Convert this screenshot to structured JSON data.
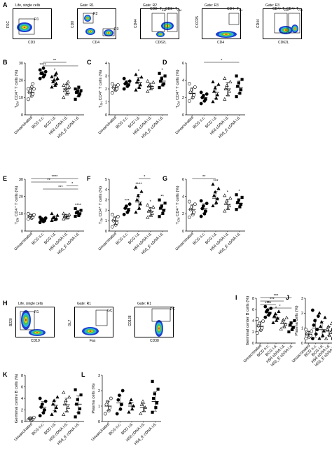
{
  "row1": {
    "panel_label": "A",
    "plots": [
      {
        "gate": "Life, single cells",
        "xlabel": "CD3",
        "ylabel": "FSC",
        "regions": [
          "R1"
        ]
      },
      {
        "gate": "Gate: R1",
        "xlabel": "CD4",
        "ylabel": "CD8",
        "regions": [
          "R2",
          "R3"
        ]
      },
      {
        "gate": "Gate: R2",
        "xlabel": "CD62L",
        "ylabel": "CD44",
        "regions": [
          "CD8⁺ T",
          "CD8⁺ T"
        ],
        "region_subs": [
          "EM",
          "CM"
        ]
      },
      {
        "gate": "Gate: R3",
        "xlabel": "CD4",
        "ylabel": "CXCR5",
        "regions": [
          "CD4⁺ T"
        ],
        "region_subs": [
          "FH"
        ]
      },
      {
        "gate": "Gate: R3",
        "xlabel": "CD62L",
        "ylabel": "CD44",
        "regions": [
          "CD4⁺ T",
          "CD4⁺ T"
        ],
        "region_subs": [
          "EM",
          "CM"
        ]
      }
    ]
  },
  "row4": {
    "panel_label": "H",
    "plots": [
      {
        "gate": "Life, single cells",
        "xlabel": "CD19",
        "ylabel": "B220",
        "regions": [
          "R1"
        ]
      },
      {
        "gate": "Gate: R1",
        "xlabel": "Fas",
        "ylabel": "GL7",
        "regions": [
          "GC"
        ]
      },
      {
        "gate": "Gate: R1",
        "xlabel": "CD38",
        "ylabel": "CD138",
        "regions": [
          "PC"
        ]
      }
    ]
  },
  "chart_data": [
    {
      "id": "B",
      "type": "scatter",
      "ylabel": "T",
      "ylabel_sub": "EM",
      "ylabel_rest": " CD4⁺ T cells (%)",
      "yticks": [
        0,
        10,
        20,
        30
      ],
      "ylim": [
        0,
        30
      ],
      "categories": [
        "Unvaccinated",
        "BCG s.c.",
        "BCG i.d.",
        "H56 cDNA i.d.",
        "H56_E cDNA i.d."
      ],
      "markers": [
        "circle-open",
        "circle-filled",
        "triangle-filled",
        "triangle-open",
        "square-filled"
      ],
      "means": [
        13,
        23.5,
        20,
        15,
        13
      ],
      "values": [
        [
          9,
          11,
          12,
          13,
          14,
          15,
          15,
          16,
          18
        ],
        [
          21,
          22,
          23,
          24,
          24,
          25,
          26,
          27
        ],
        [
          16,
          17,
          18,
          19,
          20,
          21,
          22,
          23,
          24
        ],
        [
          10,
          12,
          13,
          14,
          15,
          16,
          17,
          18,
          19
        ],
        [
          9,
          11,
          12,
          13,
          14,
          14,
          15,
          16
        ]
      ],
      "stars": [
        "",
        "****",
        "*",
        "",
        ""
      ],
      "brackets": [
        {
          "from": 1,
          "to": 3,
          "label": "**"
        },
        {
          "from": 1,
          "to": 4,
          "label": ""
        }
      ]
    },
    {
      "id": "C",
      "type": "scatter",
      "ylabel": "T",
      "ylabel_sub": "FH",
      "ylabel_rest": " CD4⁺ T cells (%)",
      "yticks": [
        0,
        1,
        2,
        3,
        4
      ],
      "ylim": [
        0,
        4
      ],
      "categories": [
        "Unvaccinated",
        "BCG s.c.",
        "BCG i.d.",
        "H56 cDNA i.d.",
        "H56_E cDNA i.d."
      ],
      "markers": [
        "circle-open",
        "circle-filled",
        "triangle-filled",
        "triangle-open",
        "square-filled"
      ],
      "means": [
        2.1,
        2.4,
        2.5,
        2.2,
        2.6
      ],
      "values": [
        [
          1.7,
          1.9,
          2.0,
          2.1,
          2.2,
          2.3,
          2.4
        ],
        [
          2.0,
          2.2,
          2.3,
          2.4,
          2.5,
          2.6,
          2.8
        ],
        [
          1.9,
          2.1,
          2.3,
          2.5,
          2.7,
          2.9,
          3.1
        ],
        [
          1.8,
          2.0,
          2.1,
          2.2,
          2.3,
          2.5,
          2.6
        ],
        [
          2.1,
          2.3,
          2.4,
          2.6,
          2.8,
          3.0,
          3.2
        ]
      ],
      "stars": [
        "",
        "",
        "*",
        "",
        "*"
      ],
      "brackets": []
    },
    {
      "id": "D",
      "type": "scatter",
      "ylabel": "T",
      "ylabel_sub": "CM",
      "ylabel_rest": " CD4⁺ T cells (%)",
      "yticks": [
        0,
        2,
        4,
        6
      ],
      "ylim": [
        0,
        6
      ],
      "categories": [
        "Unvaccinated",
        "BCG s.c.",
        "BCG i.d.",
        "H56 cDNA i.d.",
        "H56_E cDNA i.d."
      ],
      "markers": [
        "circle-open",
        "circle-filled",
        "triangle-filled",
        "triangle-open",
        "square-filled"
      ],
      "means": [
        2.5,
        2.0,
        2.6,
        3.0,
        3.2
      ],
      "values": [
        [
          1.6,
          2.0,
          2.3,
          2.6,
          2.9,
          3.2,
          3.6
        ],
        [
          1.3,
          1.6,
          1.8,
          2.0,
          2.2,
          2.4,
          2.6
        ],
        [
          1.5,
          1.9,
          2.3,
          2.7,
          3.1,
          3.5,
          3.8
        ],
        [
          1.8,
          2.3,
          2.7,
          3.0,
          3.4,
          3.8,
          4.2
        ],
        [
          2.1,
          2.5,
          2.9,
          3.3,
          3.7,
          4.1,
          4.5
        ]
      ],
      "stars": [
        "",
        "",
        "",
        "",
        ""
      ],
      "brackets": [
        {
          "from": 1,
          "to": 4,
          "label": "*"
        }
      ]
    },
    {
      "id": "E",
      "type": "scatter",
      "ylabel": "T",
      "ylabel_sub": "EM",
      "ylabel_rest": " CD4⁺ T cells (%)",
      "yticks": [
        0,
        10,
        20,
        30
      ],
      "ylim": [
        0,
        30
      ],
      "categories": [
        "Unvaccinated",
        "BCG s.c.",
        "BCG i.d.",
        "H56 cDNA i.d.",
        "H56_E cDNA i.d."
      ],
      "markers": [
        "circle-open",
        "circle-filled",
        "triangle-filled",
        "triangle-open",
        "square-filled"
      ],
      "means": [
        8.5,
        6.5,
        7.5,
        8.5,
        10.5
      ],
      "values": [
        [
          7,
          7.5,
          8,
          8.5,
          9,
          9.5,
          10
        ],
        [
          5,
          5.5,
          6,
          6.5,
          7,
          7.5,
          8
        ],
        [
          6,
          6.5,
          7,
          7.5,
          8,
          9,
          10
        ],
        [
          7,
          7.5,
          8,
          8.5,
          9,
          9.5,
          10
        ],
        [
          8.5,
          9,
          10,
          10.5,
          11,
          12,
          13
        ]
      ],
      "stars": [
        "",
        "",
        "",
        "",
        "****"
      ],
      "brackets": [
        {
          "from": 0,
          "to": 4,
          "label": "****"
        },
        {
          "from": 0,
          "to": 3,
          "label": "**"
        },
        {
          "from": 3,
          "to": 4,
          "label": "*"
        },
        {
          "from": 1,
          "to": 4,
          "label": "***"
        }
      ]
    },
    {
      "id": "F",
      "type": "scatter",
      "ylabel": "T",
      "ylabel_sub": "FH",
      "ylabel_rest": " CD4⁺ T cells (%)",
      "yticks": [
        0,
        1,
        2,
        3,
        4,
        5
      ],
      "ylim": [
        0,
        5
      ],
      "categories": [
        "Unvaccinated",
        "BCG s.c.",
        "BCG i.d.",
        "H56 cDNA i.d.",
        "H56_E cDNA i.d."
      ],
      "markers": [
        "circle-open",
        "circle-filled",
        "triangle-filled",
        "triangle-open",
        "square-filled"
      ],
      "means": [
        1.0,
        2.2,
        2.8,
        1.9,
        2.1
      ],
      "values": [
        [
          0.4,
          0.6,
          0.8,
          1.0,
          1.2,
          1.4,
          1.6
        ],
        [
          1.6,
          1.8,
          2.0,
          2.2,
          2.4,
          2.6
        ],
        [
          1.8,
          2.2,
          2.6,
          3.0,
          3.4,
          3.8,
          4.2
        ],
        [
          1.3,
          1.5,
          1.7,
          1.9,
          2.1,
          2.3,
          2.5
        ],
        [
          1.4,
          1.7,
          2.0,
          2.2,
          2.4,
          2.7,
          3.0
        ]
      ],
      "stars": [
        "",
        "***",
        "****",
        "*",
        "**"
      ],
      "brackets": [
        {
          "from": 2,
          "to": 3,
          "label": "*"
        }
      ]
    },
    {
      "id": "G",
      "type": "scatter",
      "ylabel": "T",
      "ylabel_sub": "CM",
      "ylabel_rest": " CD4⁺ T cells (%)",
      "yticks": [
        0,
        2,
        4,
        6
      ],
      "ylim": [
        0,
        6
      ],
      "categories": [
        "Unvaccinated",
        "BCG s.c.",
        "BCG i.d.",
        "H56 cDNA i.d.",
        "H56_E cDNA i.d."
      ],
      "markers": [
        "circle-open",
        "circle-filled",
        "triangle-filled",
        "triangle-open",
        "square-filled"
      ],
      "means": [
        2.5,
        2.6,
        3.8,
        3.1,
        3.2
      ],
      "values": [
        [
          1.6,
          1.9,
          2.2,
          2.5,
          2.8,
          3.1,
          3.4
        ],
        [
          1.7,
          2.0,
          2.3,
          2.6,
          2.9,
          3.2,
          3.5
        ],
        [
          2.9,
          3.3,
          3.7,
          4.1,
          4.5,
          4.9,
          5.4
        ],
        [
          2.3,
          2.6,
          2.9,
          3.2,
          3.5,
          3.8,
          4.1
        ],
        [
          2.5,
          2.8,
          3.1,
          3.3,
          3.6,
          3.9,
          4.2
        ]
      ],
      "stars": [
        "",
        "",
        "***",
        "*",
        "*"
      ],
      "brackets": [
        {
          "from": 0,
          "to": 2,
          "label": "**"
        }
      ]
    },
    {
      "id": "I",
      "type": "scatter",
      "ylabel": "Germinal center B cells (%)",
      "ylabel_sub": "",
      "ylabel_rest": "",
      "yticks": [
        0,
        2,
        4,
        6,
        8
      ],
      "ylim": [
        0,
        8
      ],
      "categories": [
        "Unvaccinated",
        "BCG s.c.",
        "BCG i.d.",
        "H56 cDNA i.d.",
        "H56_E cDNA i.d."
      ],
      "markers": [
        "circle-open",
        "circle-filled",
        "triangle-filled",
        "triangle-open",
        "square-filled"
      ],
      "means": [
        3.0,
        5.5,
        4.5,
        3.5,
        3.0
      ],
      "values": [
        [
          1.8,
          2.3,
          2.7,
          3.1,
          3.5,
          3.9,
          4.3
        ],
        [
          4.6,
          5.0,
          5.3,
          5.6,
          5.9,
          6.2,
          6.5
        ],
        [
          3.6,
          4.0,
          4.4,
          4.8,
          5.2,
          5.6
        ],
        [
          2.5,
          2.9,
          3.3,
          3.7,
          4.1,
          4.5
        ],
        [
          2.0,
          2.4,
          2.8,
          3.2,
          3.6,
          4.0
        ]
      ],
      "stars": [
        "",
        "****",
        "*",
        "",
        ""
      ],
      "brackets": [
        {
          "from": 0,
          "to": 4,
          "label": "***"
        },
        {
          "from": 0,
          "to": 3,
          "label": "***"
        },
        {
          "from": 0,
          "to": 2,
          "label": "**"
        },
        {
          "from": 1,
          "to": 4,
          "label": "*"
        }
      ]
    },
    {
      "id": "J",
      "type": "scatter",
      "ylabel": "Plasma cells (%)",
      "ylabel_sub": "",
      "ylabel_rest": "",
      "yticks": [
        0,
        1,
        2,
        3
      ],
      "ylim": [
        0,
        3
      ],
      "categories": [
        "Unvaccinated",
        "BCG s.c.",
        "BCG i.d.",
        "H56 cDNA i.d.",
        "H56_E cDNA i.d."
      ],
      "markers": [
        "circle-open",
        "circle-filled",
        "triangle-filled",
        "triangle-open",
        "square-filled"
      ],
      "means": [
        0.6,
        1.0,
        0.9,
        0.8,
        0.6
      ],
      "values": [
        [
          0.3,
          0.4,
          0.5,
          0.6,
          0.7,
          0.8,
          0.9
        ],
        [
          0.3,
          0.6,
          0.9,
          1.2,
          1.5,
          1.8,
          2.2
        ],
        [
          0.3,
          0.5,
          0.8,
          1.1,
          1.4,
          1.7,
          2.0
        ],
        [
          0.3,
          0.5,
          0.7,
          0.9,
          1.1,
          1.3
        ],
        [
          0.3,
          0.4,
          0.5,
          0.6,
          0.7,
          0.8,
          0.9
        ]
      ],
      "stars": [
        "",
        "",
        "",
        "",
        ""
      ],
      "brackets": []
    },
    {
      "id": "K",
      "type": "scatter",
      "ylabel": "Germinal centre B cells (%)",
      "ylabel_sub": "",
      "ylabel_rest": "",
      "yticks": [
        0,
        2,
        4,
        6,
        8
      ],
      "ylim": [
        0,
        8
      ],
      "categories": [
        "Unvaccinated",
        "BCG s.c.",
        "BCG i.d.",
        "H56 cDNA i.d.",
        "H56_E cDNA i.d."
      ],
      "markers": [
        "circle-open",
        "circle-filled",
        "triangle-filled",
        "triangle-open",
        "square-filled"
      ],
      "means": [
        0.5,
        2.5,
        2.8,
        2.9,
        3.0
      ],
      "values": [
        [
          0.2,
          0.3,
          0.4,
          0.5,
          0.6,
          0.7
        ],
        [
          1.0,
          1.5,
          2.0,
          2.5,
          3.0,
          3.5,
          4.0
        ],
        [
          1.2,
          1.8,
          2.4,
          3.0,
          3.6,
          4.2
        ],
        [
          1.2,
          1.8,
          2.4,
          3.0,
          3.6,
          4.2,
          5.0
        ],
        [
          0.8,
          1.5,
          2.2,
          3.0,
          3.8,
          4.6,
          5.5
        ]
      ],
      "stars": [
        "",
        "",
        "",
        "",
        ""
      ],
      "brackets": []
    },
    {
      "id": "L",
      "type": "scatter",
      "ylabel": "Plasma cells (%)",
      "ylabel_sub": "",
      "ylabel_rest": "",
      "yticks": [
        0,
        1,
        2,
        3
      ],
      "ylim": [
        0,
        3
      ],
      "categories": [
        "Unvaccinated",
        "BCG s.c.",
        "BCG i.d.",
        "H56 cDNA i.d.",
        "H56_E cDNA i.d."
      ],
      "markers": [
        "circle-open",
        "circle-filled",
        "triangle-filled",
        "triangle-open",
        "square-filled"
      ],
      "means": [
        1.0,
        1.2,
        1.0,
        0.9,
        1.3
      ],
      "values": [
        [
          0.5,
          0.7,
          0.9,
          1.1,
          1.3,
          1.5
        ],
        [
          0.5,
          0.8,
          1.1,
          1.4,
          1.7,
          2.0
        ],
        [
          0.6,
          0.8,
          1.0,
          1.2,
          1.4
        ],
        [
          0.5,
          0.7,
          0.9,
          1.1,
          1.3
        ],
        [
          0.6,
          0.9,
          1.2,
          1.5,
          1.8,
          2.1,
          2.6
        ]
      ],
      "stars": [
        "",
        "",
        "",
        "",
        ""
      ],
      "brackets": []
    }
  ]
}
